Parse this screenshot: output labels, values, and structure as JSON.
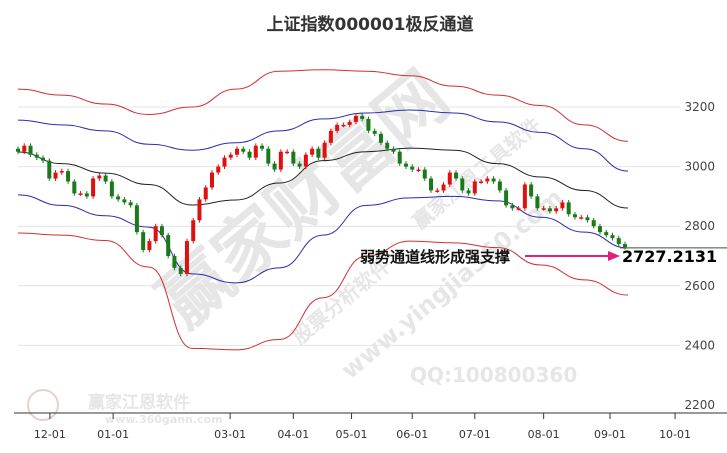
{
  "chart_data": {
    "type": "candlestick",
    "title": "上证指数000001极反通道",
    "ylim": [
      2200,
      3350
    ],
    "yticks": [
      2200,
      2400,
      2600,
      2800,
      3000,
      3200
    ],
    "grid": true,
    "xticks": [
      {
        "label": "12-01",
        "index": 5.1
      },
      {
        "label": "01-01",
        "index": 15.2
      },
      {
        "label": "03-01",
        "index": 33.9
      },
      {
        "label": "04-01",
        "index": 44
      },
      {
        "label": "05-01",
        "index": 53.3
      },
      {
        "label": "06-01",
        "index": 63
      },
      {
        "label": "07-01",
        "index": 73
      },
      {
        "label": "08-01",
        "index": 84
      },
      {
        "label": "09-01",
        "index": 94.6
      },
      {
        "label": "10-01",
        "index": 105
      }
    ],
    "closes": [
      3050,
      3070,
      3040,
      3030,
      3020,
      2960,
      2980,
      2985,
      2950,
      2910,
      2910,
      2900,
      2960,
      2970,
      2950,
      2900,
      2890,
      2880,
      2870,
      2780,
      2720,
      2750,
      2800,
      2770,
      2700,
      2660,
      2640,
      2750,
      2820,
      2890,
      2930,
      2980,
      3000,
      3030,
      3040,
      3060,
      3050,
      3030,
      3070,
      3060,
      3010,
      2990,
      3050,
      3050,
      3010,
      3000,
      3040,
      3060,
      3030,
      3080,
      3120,
      3140,
      3140,
      3150,
      3170,
      3160,
      3120,
      3110,
      3080,
      3060,
      3050,
      3010,
      3000,
      2990,
      2990,
      2960,
      2920,
      2920,
      2940,
      2980,
      2960,
      2920,
      2910,
      2950,
      2950,
      2960,
      2950,
      2920,
      2870,
      2860,
      2860,
      2940,
      2900,
      2860,
      2860,
      2850,
      2860,
      2880,
      2840,
      2830,
      2830,
      2820,
      2800,
      2780,
      2770,
      2760,
      2740,
      2730
    ],
    "channels": [
      {
        "role": "outer-upper",
        "color": "#d03030",
        "values": [
          3260,
          3240,
          3210,
          3175,
          3200,
          3260,
          3320,
          3325,
          3320,
          3305,
          3270,
          3240,
          3205,
          3140,
          3085
        ]
      },
      {
        "role": "inner-upper",
        "color": "#2c2cb0",
        "values": [
          3156,
          3140,
          3120,
          3075,
          3055,
          3080,
          3120,
          3160,
          3180,
          3190,
          3180,
          3150,
          3115,
          3060,
          2985
        ]
      },
      {
        "role": "middle",
        "color": "#222222",
        "values": [
          3049,
          3010,
          2978,
          2940,
          2871,
          2888,
          2945,
          3020,
          3050,
          3062,
          3055,
          3010,
          2965,
          2920,
          2861
        ]
      },
      {
        "role": "inner-lower",
        "color": "#2c2cb0",
        "values": [
          2905,
          2870,
          2835,
          2797,
          2640,
          2610,
          2660,
          2770,
          2870,
          2895,
          2900,
          2885,
          2830,
          2780,
          2727
        ]
      },
      {
        "role": "outer-lower",
        "color": "#d03030",
        "values": [
          2777,
          2770,
          2752,
          2663,
          2390,
          2385,
          2420,
          2560,
          2700,
          2750,
          2744,
          2728,
          2670,
          2620,
          2569
        ]
      }
    ],
    "colors": {
      "up": "#e01010",
      "down": "#1a7a1a",
      "arrow": "#e0207a",
      "support_line": "#2a5a2a"
    },
    "annotation": {
      "text": "弱势通道线形成强支撑",
      "value_label": "2727.2131",
      "value": 2727.2131
    }
  },
  "watermark": {
    "big": "赢家财富网",
    "sub1": "股票分析软件",
    "sub2": "赢家江恩工具软件",
    "url": "www.yingjia360.com",
    "qq": "QQ:100800360",
    "logo_name": "赢家江恩软件",
    "logo_url": "www.360gann.com"
  }
}
